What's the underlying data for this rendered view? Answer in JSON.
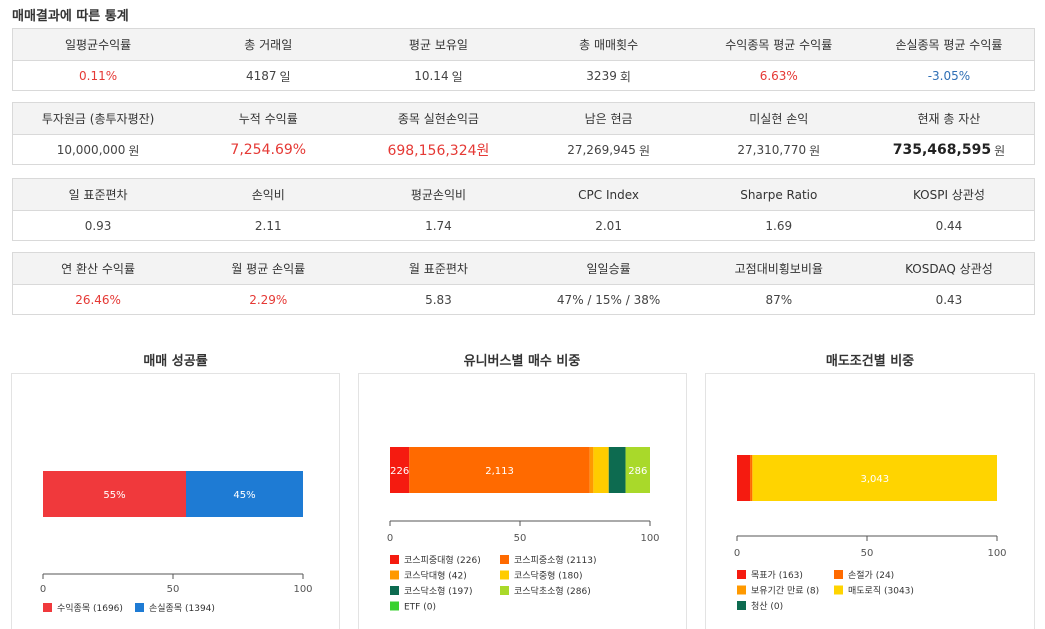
{
  "page_title": "매매결과에 따른 통계",
  "tables": [
    {
      "headers": [
        "일평균수익률",
        "총 거래일",
        "평균 보유일",
        "총 매매횟수",
        "수익종목 평균 수익률",
        "손실종목 평균 수익률"
      ],
      "values": [
        {
          "value": "0.11%",
          "unit": "",
          "color": "red"
        },
        {
          "value": "4187",
          "unit": "일",
          "color": ""
        },
        {
          "value": "10.14",
          "unit": "일",
          "color": ""
        },
        {
          "value": "3239",
          "unit": "회",
          "color": ""
        },
        {
          "value": "6.63%",
          "unit": "",
          "color": "red"
        },
        {
          "value": "-3.05%",
          "unit": "",
          "color": "blue"
        }
      ]
    },
    {
      "headers": [
        "투자원금 (총투자평잔)",
        "누적 수익률",
        "종목 실현손익금",
        "남은 현금",
        "미실현 손익",
        "현재 총 자산"
      ],
      "values": [
        {
          "value": "10,000,000",
          "unit": "원",
          "color": ""
        },
        {
          "value": "7,254.69%",
          "unit": "",
          "color": "big-red"
        },
        {
          "value": "698,156,324원",
          "unit": "",
          "color": "big-red"
        },
        {
          "value": "27,269,945",
          "unit": "원",
          "color": ""
        },
        {
          "value": "27,310,770",
          "unit": "원",
          "color": ""
        },
        {
          "value": "735,468,595",
          "unit": "원",
          "color": "bold"
        }
      ]
    },
    {
      "headers": [
        "일 표준편차",
        "손익비",
        "평균손익비",
        "CPC Index",
        "Sharpe Ratio",
        "KOSPI 상관성"
      ],
      "values": [
        {
          "value": "0.93",
          "unit": "",
          "color": ""
        },
        {
          "value": "2.11",
          "unit": "",
          "color": ""
        },
        {
          "value": "1.74",
          "unit": "",
          "color": ""
        },
        {
          "value": "2.01",
          "unit": "",
          "color": ""
        },
        {
          "value": "1.69",
          "unit": "",
          "color": ""
        },
        {
          "value": "0.44",
          "unit": "",
          "color": ""
        }
      ]
    },
    {
      "headers": [
        "연 환산 수익률",
        "월 평균 손익률",
        "월 표준편차",
        "일일승률",
        "고점대비횡보비율",
        "KOSDAQ 상관성"
      ],
      "values": [
        {
          "value": "26.46%",
          "unit": "",
          "color": "red"
        },
        {
          "value": "2.29%",
          "unit": "",
          "color": "red"
        },
        {
          "value": "5.83",
          "unit": "",
          "color": ""
        },
        {
          "value": "47% / 15% / 38%",
          "unit": "",
          "color": ""
        },
        {
          "value": "87%",
          "unit": "",
          "color": ""
        },
        {
          "value": "0.43",
          "unit": "",
          "color": ""
        }
      ]
    }
  ],
  "chart_data": [
    {
      "type": "bar",
      "orientation": "horizontal-stacked",
      "title": "매매 성공률",
      "xlim": [
        0,
        100
      ],
      "xticks": [
        "0",
        "50",
        "100"
      ],
      "series": [
        {
          "name": "수익종목",
          "value": 55,
          "count": 1696,
          "label": "55%",
          "legend": "수익종목 (1696)",
          "color": "#f0393c"
        },
        {
          "name": "손실종목",
          "value": 45,
          "count": 1394,
          "label": "45%",
          "legend": "손실종목 (1394)",
          "color": "#1e7bd4"
        }
      ]
    },
    {
      "type": "bar",
      "orientation": "horizontal-stacked",
      "title": "유니버스별 매수 비중",
      "xlim": [
        0,
        100
      ],
      "xticks": [
        "0",
        "50",
        "100"
      ],
      "series": [
        {
          "name": "코스피중대형",
          "value": 226,
          "label": "226",
          "legend": "코스피중대형 (226)",
          "color": "#f51b10"
        },
        {
          "name": "코스피중소형",
          "value": 2113,
          "label": "2,113",
          "legend": "코스피중소형 (2113)",
          "color": "#ff6a00"
        },
        {
          "name": "코스닥대형",
          "value": 42,
          "label": "",
          "legend": "코스닥대형 (42)",
          "color": "#ff9900"
        },
        {
          "name": "코스닥중형",
          "value": 180,
          "label": "",
          "legend": "코스닥중형 (180)",
          "color": "#ffcc00"
        },
        {
          "name": "코스닥소형",
          "value": 197,
          "label": "",
          "legend": "코스닥소형 (197)",
          "color": "#0d6b50"
        },
        {
          "name": "코스닥초소형",
          "value": 286,
          "label": "286",
          "legend": "코스닥초소형 (286)",
          "color": "#a9d92a"
        },
        {
          "name": "ETF",
          "value": 0,
          "label": "",
          "legend": "ETF (0)",
          "color": "#39d12f"
        }
      ]
    },
    {
      "type": "bar",
      "orientation": "horizontal-stacked",
      "title": "매도조건별 비중",
      "xlim": [
        0,
        100
      ],
      "xticks": [
        "0",
        "50",
        "100"
      ],
      "series": [
        {
          "name": "목표가",
          "value": 163,
          "label": "",
          "legend": "목표가 (163)",
          "color": "#f51b10"
        },
        {
          "name": "손절가",
          "value": 24,
          "label": "",
          "legend": "손절가 (24)",
          "color": "#ff6a00"
        },
        {
          "name": "보유기간 만료",
          "value": 8,
          "label": "",
          "legend": "보유기간 만료 (8)",
          "color": "#ff9900"
        },
        {
          "name": "매도로직",
          "value": 3043,
          "label": "3,043",
          "legend": "매도로직 (3043)",
          "color": "#ffd400"
        },
        {
          "name": "청산",
          "value": 0,
          "label": "",
          "legend": "청산 (0)",
          "color": "#0d6b50"
        }
      ]
    }
  ]
}
